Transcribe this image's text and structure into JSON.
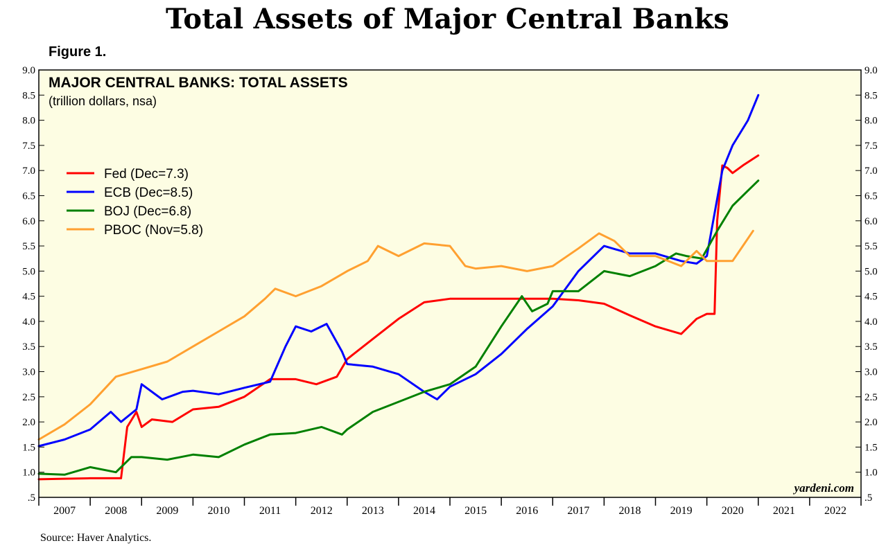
{
  "page": {
    "title": "Total Assets of Major Central Banks",
    "figure_label": "Figure 1.",
    "source": "Source: Haver Analytics.",
    "watermark": "yardeni.com"
  },
  "chart_data": {
    "type": "line",
    "title": "MAJOR CENTRAL BANKS: TOTAL ASSETS",
    "subtitle": "(trillion dollars, nsa)",
    "xlabel": "",
    "ylabel": "",
    "ylim": [
      0.5,
      9.0
    ],
    "xlim": [
      2007.0,
      2023.0
    ],
    "y_ticks": [
      0.5,
      1.0,
      1.5,
      2.0,
      2.5,
      3.0,
      3.5,
      4.0,
      4.5,
      5.0,
      5.5,
      6.0,
      6.5,
      7.0,
      7.5,
      8.0,
      8.5,
      9.0
    ],
    "y_tick_labels": [
      ".5",
      "1.0",
      "1.5",
      "2.0",
      "2.5",
      "3.0",
      "3.5",
      "4.0",
      "4.5",
      "5.0",
      "5.5",
      "6.0",
      "6.5",
      "7.0",
      "7.5",
      "8.0",
      "8.5",
      "9.0"
    ],
    "x_tick_labels": [
      "2007",
      "2008",
      "2009",
      "2010",
      "2011",
      "2012",
      "2013",
      "2014",
      "2015",
      "2016",
      "2017",
      "2018",
      "2019",
      "2020",
      "2021",
      "2022"
    ],
    "grid": false,
    "legend_position": "top-left",
    "background_color": "#fdfde3",
    "series": [
      {
        "name": "Fed (Dec=7.3)",
        "color": "#ff0000",
        "x": [
          2007.0,
          2007.5,
          2008.0,
          2008.6,
          2008.72,
          2008.9,
          2009.0,
          2009.2,
          2009.6,
          2010.0,
          2010.5,
          2011.0,
          2011.5,
          2012.0,
          2012.4,
          2012.8,
          2013.0,
          2013.5,
          2014.0,
          2014.5,
          2015.0,
          2016.0,
          2017.0,
          2017.5,
          2018.0,
          2018.5,
          2019.0,
          2019.5,
          2019.8,
          2020.0,
          2020.15,
          2020.2,
          2020.3,
          2020.4,
          2020.5,
          2020.7,
          2021.0
        ],
        "y": [
          0.86,
          0.87,
          0.88,
          0.88,
          1.9,
          2.2,
          1.9,
          2.05,
          2.0,
          2.25,
          2.3,
          2.5,
          2.85,
          2.85,
          2.75,
          2.9,
          3.25,
          3.65,
          4.05,
          4.38,
          4.45,
          4.45,
          4.45,
          4.42,
          4.35,
          4.12,
          3.9,
          3.75,
          4.05,
          4.15,
          4.15,
          6.0,
          7.1,
          7.05,
          6.95,
          7.1,
          7.3
        ]
      },
      {
        "name": "ECB (Dec=8.5)",
        "color": "#0000ff",
        "x": [
          2007.0,
          2007.5,
          2008.0,
          2008.4,
          2008.6,
          2008.9,
          2009.0,
          2009.4,
          2009.8,
          2010.0,
          2010.5,
          2011.0,
          2011.5,
          2011.8,
          2012.0,
          2012.3,
          2012.6,
          2012.9,
          2013.0,
          2013.5,
          2014.0,
          2014.5,
          2014.75,
          2015.0,
          2015.5,
          2016.0,
          2016.5,
          2017.0,
          2017.5,
          2018.0,
          2018.5,
          2019.0,
          2019.5,
          2019.8,
          2020.0,
          2020.3,
          2020.5,
          2020.8,
          2021.0
        ],
        "y": [
          1.52,
          1.65,
          1.85,
          2.2,
          2.0,
          2.25,
          2.75,
          2.45,
          2.6,
          2.62,
          2.55,
          2.68,
          2.8,
          3.5,
          3.9,
          3.8,
          3.95,
          3.4,
          3.15,
          3.1,
          2.95,
          2.6,
          2.45,
          2.7,
          2.95,
          3.35,
          3.85,
          4.3,
          5.0,
          5.5,
          5.35,
          5.35,
          5.2,
          5.15,
          5.3,
          7.0,
          7.5,
          8.0,
          8.5
        ]
      },
      {
        "name": "BOJ (Dec=6.8)",
        "color": "#008000",
        "x": [
          2007.0,
          2007.5,
          2008.0,
          2008.5,
          2008.8,
          2009.0,
          2009.5,
          2010.0,
          2010.5,
          2011.0,
          2011.5,
          2012.0,
          2012.5,
          2012.9,
          2013.0,
          2013.5,
          2014.0,
          2014.5,
          2015.0,
          2015.5,
          2016.0,
          2016.4,
          2016.6,
          2016.9,
          2017.0,
          2017.5,
          2018.0,
          2018.5,
          2019.0,
          2019.4,
          2019.6,
          2019.9,
          2020.2,
          2020.5,
          2020.8,
          2021.0
        ],
        "y": [
          0.97,
          0.95,
          1.1,
          1.0,
          1.3,
          1.3,
          1.25,
          1.35,
          1.3,
          1.55,
          1.75,
          1.78,
          1.9,
          1.75,
          1.85,
          2.2,
          2.4,
          2.6,
          2.75,
          3.1,
          3.9,
          4.5,
          4.2,
          4.35,
          4.6,
          4.6,
          5.0,
          4.9,
          5.1,
          5.35,
          5.3,
          5.25,
          5.8,
          6.3,
          6.6,
          6.8
        ]
      },
      {
        "name": "PBOC (Nov=5.8)",
        "color": "#ffa030",
        "x": [
          2007.0,
          2007.5,
          2008.0,
          2008.5,
          2009.0,
          2009.5,
          2010.0,
          2010.5,
          2011.0,
          2011.4,
          2011.6,
          2012.0,
          2012.5,
          2013.0,
          2013.4,
          2013.6,
          2014.0,
          2014.5,
          2015.0,
          2015.3,
          2015.5,
          2016.0,
          2016.5,
          2017.0,
          2017.5,
          2017.9,
          2018.2,
          2018.5,
          2019.0,
          2019.5,
          2019.8,
          2020.0,
          2020.5,
          2020.7,
          2020.9
        ],
        "y": [
          1.65,
          1.95,
          2.35,
          2.9,
          3.05,
          3.2,
          3.5,
          3.8,
          4.1,
          4.45,
          4.65,
          4.5,
          4.7,
          5.0,
          5.2,
          5.5,
          5.3,
          5.55,
          5.5,
          5.1,
          5.05,
          5.1,
          5.0,
          5.1,
          5.45,
          5.75,
          5.6,
          5.3,
          5.3,
          5.1,
          5.4,
          5.2,
          5.2,
          5.5,
          5.8
        ]
      }
    ]
  }
}
